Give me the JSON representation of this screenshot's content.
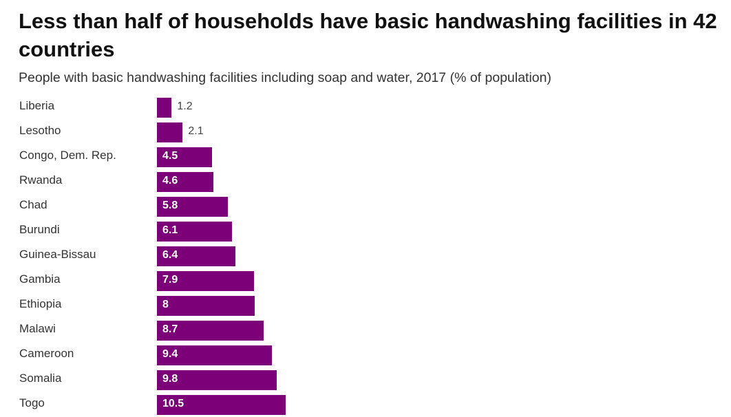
{
  "title": "Less than half of households have basic handwashing facilities in 42 countries",
  "subtitle": "People with basic handwashing facilities including soap and water, 2017 (% of population)",
  "colors": {
    "bar": "#7c0078"
  },
  "chart_data": {
    "type": "bar",
    "orientation": "horizontal",
    "title": "Less than half of households have basic handwashing facilities in 42 countries",
    "subtitle": "People with basic handwashing facilities including soap and water, 2017 (% of population)",
    "categories": [
      "Liberia",
      "Lesotho",
      "Congo, Dem. Rep.",
      "Rwanda",
      "Chad",
      "Burundi",
      "Guinea-Bissau",
      "Gambia",
      "Ethiopia",
      "Malawi",
      "Cameroon",
      "Somalia",
      "Togo"
    ],
    "values": [
      1.2,
      2.1,
      4.5,
      4.6,
      5.8,
      6.1,
      6.4,
      7.9,
      8,
      8.7,
      9.4,
      9.8,
      10.5
    ],
    "value_labels": [
      "1.2",
      "2.1",
      "4.5",
      "4.6",
      "5.8",
      "6.1",
      "6.4",
      "7.9",
      "8",
      "8.7",
      "9.4",
      "9.8",
      "10.5"
    ],
    "xlim": [
      0,
      46
    ],
    "grid": false
  }
}
